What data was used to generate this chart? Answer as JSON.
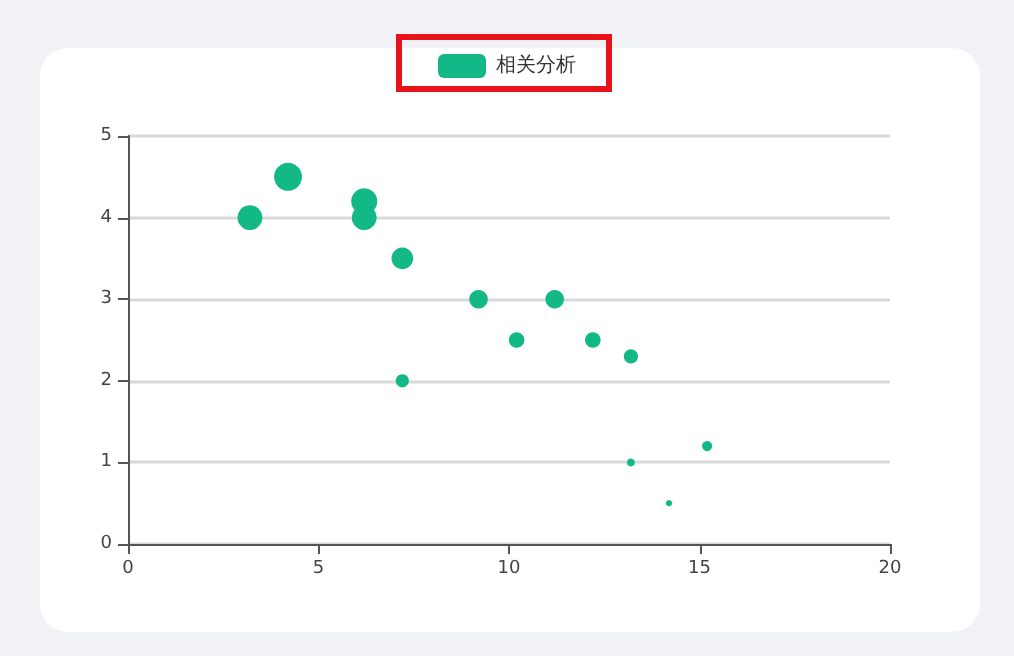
{
  "chart_data": {
    "type": "bubble",
    "legend": "top",
    "grid": "y",
    "marker": "circle",
    "series": [
      {
        "name": "相关分析",
        "color": "#12b886",
        "x": [
          3.2,
          4.2,
          6.2,
          6.2,
          7.2,
          9.2,
          10.2,
          11.2,
          12.2,
          13.2,
          7.2,
          13.2,
          15.2,
          14.2
        ],
        "values": [
          4.0,
          4.5,
          4.2,
          4.0,
          3.5,
          3.0,
          2.5,
          3.0,
          2.5,
          2.3,
          2.0,
          1.0,
          1.2,
          0.5
        ],
        "sizes": [
          0.79,
          1,
          0.87,
          0.79,
          0.6,
          0.44,
          0.31,
          0.44,
          0.31,
          0.26,
          0.22,
          0.08,
          0.13,
          0.05
        ]
      }
    ],
    "xlim": [
      0,
      20
    ],
    "xticks": [
      0,
      5,
      10,
      15,
      20
    ],
    "ylim": [
      0,
      5
    ],
    "yticks": [
      0,
      1,
      2,
      3,
      4,
      5
    ]
  }
}
